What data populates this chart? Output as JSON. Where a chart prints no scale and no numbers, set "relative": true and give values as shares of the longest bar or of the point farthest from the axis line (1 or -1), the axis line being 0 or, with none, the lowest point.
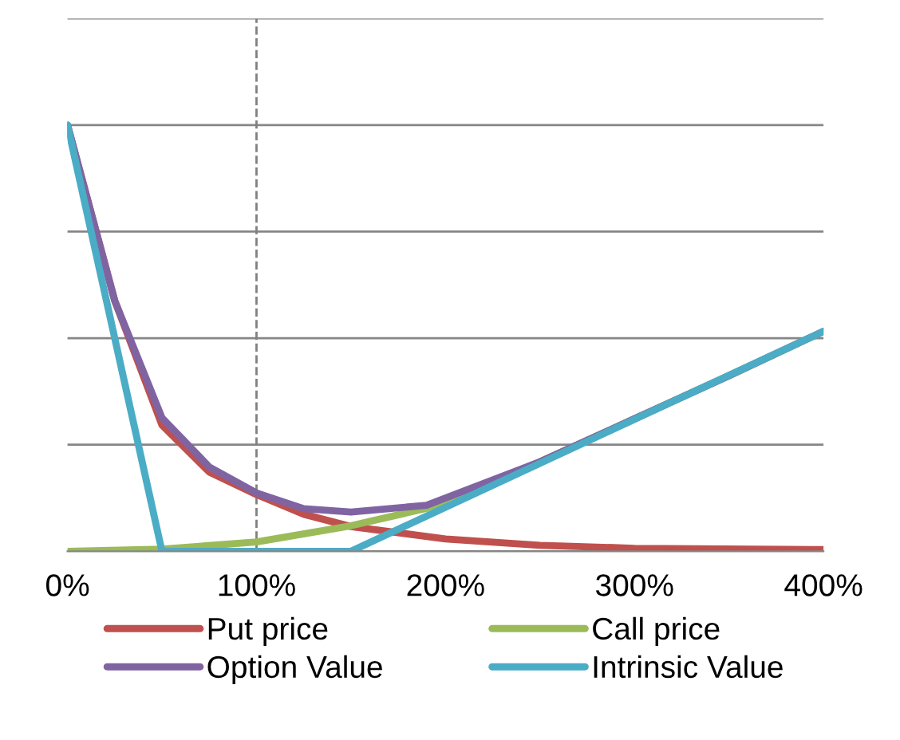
{
  "chart_data": {
    "type": "line",
    "relative": true,
    "xlim": [
      0,
      400
    ],
    "xticks": [
      {
        "value": 0,
        "label": "0%"
      },
      {
        "value": 100,
        "label": "100%"
      },
      {
        "value": 200,
        "label": "200%"
      },
      {
        "value": 300,
        "label": "300%"
      },
      {
        "value": 400,
        "label": "400%"
      }
    ],
    "series": [
      {
        "name": "Put price",
        "color": "#c0504d",
        "x": [
          0,
          25,
          50,
          75,
          100,
          125,
          150,
          200,
          250,
          300,
          400
        ],
        "values": [
          1,
          0.588,
          0.296,
          0.186,
          0.133,
          0.087,
          0.058,
          0.029,
          0.014,
          0.007,
          0.004
        ]
      },
      {
        "name": "Call price",
        "color": "#9bbb59",
        "x": [
          0,
          50,
          100,
          150,
          190,
          250,
          300,
          350,
          400
        ],
        "values": [
          0,
          0.005,
          0.022,
          0.06,
          0.101,
          0.21,
          0.311,
          0.412,
          0.516
        ]
      },
      {
        "name": "Option Value",
        "color": "#8064a2",
        "x": [
          0,
          25,
          50,
          75,
          100,
          125,
          150,
          190,
          250,
          300,
          350,
          400
        ],
        "values": [
          1,
          0.588,
          0.313,
          0.198,
          0.137,
          0.1,
          0.092,
          0.108,
          0.21,
          0.311,
          0.412,
          0.516
        ]
      },
      {
        "name": "Intrinsic Value",
        "color": "#4bacc6",
        "x": [
          0,
          50,
          150,
          400
        ],
        "values": [
          1,
          0,
          0,
          0.516
        ]
      }
    ],
    "ref_lines": [
      {
        "axis": "x",
        "value": 100,
        "color": "#808080",
        "line_style": "dashed"
      }
    ],
    "grid": "y",
    "legend": "bottom",
    "marker": "none",
    "line_style": "solid"
  }
}
